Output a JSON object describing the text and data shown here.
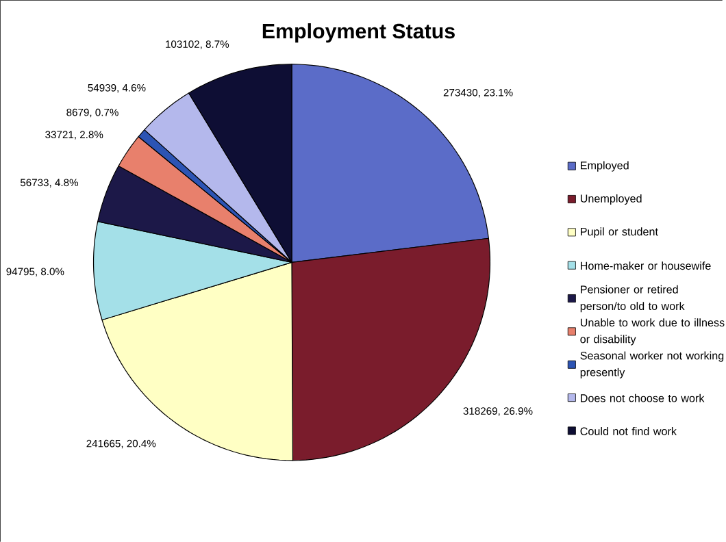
{
  "chart_data": {
    "type": "pie",
    "title": "Employment Status",
    "categories": [
      "Employed",
      "Unemployed",
      "Pupil or student",
      "Home-maker or housewife",
      "Pensioner or retired person/to old to work",
      "Unable to work due to illness or disability",
      "Seasonal worker not working presently",
      "Does not choose to work",
      "Could not find work"
    ],
    "values": [
      273430,
      318269,
      241665,
      94795,
      56733,
      33721,
      8679,
      54939,
      103102
    ],
    "value_labels": [
      "273430, 23.1%",
      "318269, 26.9%",
      "241665, 20.4%",
      "94795, 8.0%",
      "56733, 4.8%",
      "33721, 2.8%",
      "8679, 0.7%",
      "54939, 4.6%",
      "103102, 8.7%"
    ],
    "colors": [
      "#5b6cc8",
      "#7a1c2c",
      "#ffffc4",
      "#a4e0e8",
      "#1c1848",
      "#e8806c",
      "#2c54b4",
      "#b4b8ec",
      "#0e0e34"
    ],
    "legend": "right"
  }
}
